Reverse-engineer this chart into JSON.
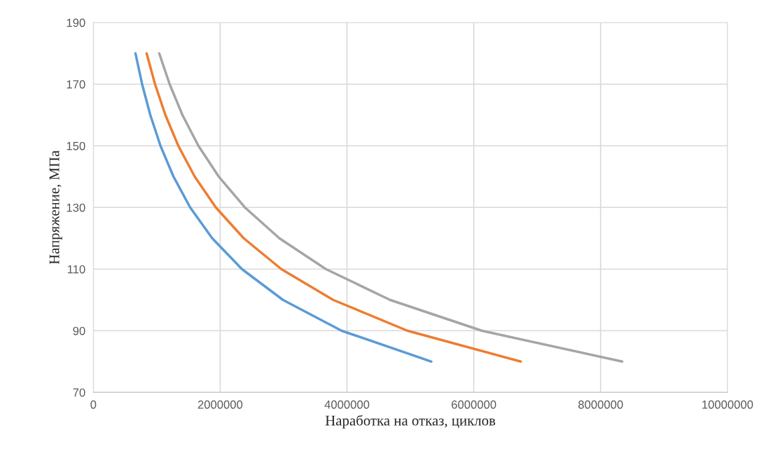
{
  "chart_data": {
    "type": "line",
    "xlabel": "Наработка на отказ, циклов",
    "ylabel": "Напряжение, МПа",
    "series": [
      {
        "color": "#5b9bd5",
        "x": [
          664000,
          769000,
          898000,
          1059000,
          1264000,
          1527000,
          1875000,
          2343000,
          2990000,
          3915000,
          5330000
        ],
        "values": [
          180,
          170,
          160,
          150,
          140,
          130,
          120,
          110,
          100,
          90,
          80
        ]
      },
      {
        "color": "#ed7d31",
        "x": [
          840000,
          973000,
          1136000,
          1340000,
          1599000,
          1932000,
          2372000,
          2964000,
          3782000,
          4953000,
          6740000
        ],
        "values": [
          180,
          170,
          160,
          150,
          140,
          130,
          120,
          110,
          100,
          90,
          80
        ]
      },
      {
        "color": "#a5a5a5",
        "x": [
          1039000,
          1203000,
          1405000,
          1657000,
          1978000,
          2390000,
          2934000,
          3667000,
          4679000,
          6127000,
          8340000
        ],
        "values": [
          180,
          170,
          160,
          150,
          140,
          130,
          120,
          110,
          100,
          90,
          80
        ]
      }
    ],
    "xlim": [
      0,
      10000000
    ],
    "xticks": [
      0,
      2000000,
      4000000,
      6000000,
      8000000,
      10000000
    ],
    "ylim": [
      70,
      190
    ],
    "yticks": [
      70,
      90,
      110,
      130,
      150,
      170,
      190
    ],
    "grid": true,
    "legend": false,
    "marker": "none",
    "line_style": "solid"
  }
}
